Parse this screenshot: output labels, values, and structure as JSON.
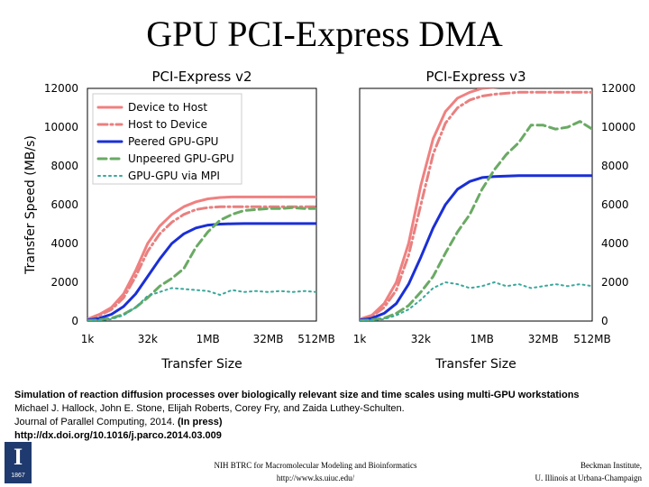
{
  "slide": {
    "title": "GPU PCI-Express DMA"
  },
  "caption": {
    "line1": "Simulation of reaction diffusion processes over biologically relevant size and time scales using multi-GPU workstations",
    "line2": "Michael J. Hallock, John E. Stone, Elijah Roberts, Corey Fry, and Zaida Luthey-Schulten.",
    "line3_journal": "Journal of Parallel Computing, 2014.",
    "line3_status": "(In press)",
    "line4": "http://dx.doi.org/10.1016/j.parco.2014.03.009"
  },
  "footer": {
    "center_line1": "NIH BTRC for Macromolecular Modeling and Bioinformatics",
    "center_line2": "http://www.ks.uiuc.edu/",
    "right_line1": "Beckman Institute,",
    "right_line2": "U. Illinois at Urbana-Champaign",
    "logo_mark": "I",
    "logo_year": "1867"
  },
  "chart_data": [
    {
      "type": "line",
      "title": "PCI-Express v2",
      "xlabel": "Transfer Size",
      "ylabel": "Transfer Speed (MB/s)",
      "x_ticks": [
        "1k",
        "32k",
        "1MB",
        "32MB",
        "512MB"
      ],
      "y_ticks": [
        0,
        2000,
        4000,
        6000,
        8000,
        10000,
        12000
      ],
      "ylim": [
        0,
        12000
      ],
      "x_scale": "log2 (transfer size)",
      "legend_position": "top-left",
      "x": [
        1,
        2,
        3,
        4,
        5,
        6,
        7,
        8,
        9,
        10,
        11,
        12,
        13,
        14,
        15,
        16,
        17,
        18,
        19,
        20
      ],
      "series": [
        {
          "name": "Device to Host",
          "color": "#f08080",
          "style": "solid",
          "values": [
            100,
            350,
            700,
            1400,
            2600,
            4000,
            4900,
            5500,
            5900,
            6150,
            6300,
            6370,
            6400,
            6400,
            6400,
            6400,
            6400,
            6400,
            6400,
            6400
          ]
        },
        {
          "name": "Host to Device",
          "color": "#e88080",
          "style": "dashdot",
          "values": [
            100,
            300,
            600,
            1200,
            2300,
            3600,
            4500,
            5100,
            5500,
            5750,
            5850,
            5900,
            5900,
            5900,
            5900,
            5900,
            5900,
            5900,
            5900,
            5900
          ]
        },
        {
          "name": "Peered GPU-GPU",
          "color": "#1a2fd6",
          "style": "solid",
          "values": [
            50,
            150,
            350,
            750,
            1400,
            2300,
            3200,
            4000,
            4500,
            4800,
            4950,
            5000,
            5020,
            5030,
            5030,
            5030,
            5030,
            5030,
            5030,
            5030
          ]
        },
        {
          "name": "Unpeered GPU-GPU",
          "color": "#6aaa64",
          "style": "dashed",
          "values": [
            20,
            60,
            150,
            350,
            700,
            1200,
            1800,
            2200,
            2700,
            3800,
            4600,
            5200,
            5500,
            5700,
            5750,
            5800,
            5800,
            5850,
            5800,
            5800
          ]
        },
        {
          "name": "GPU-GPU via MPI",
          "color": "#3aa89a",
          "style": "dotted",
          "values": [
            10,
            40,
            100,
            300,
            700,
            1300,
            1500,
            1700,
            1650,
            1600,
            1550,
            1350,
            1600,
            1500,
            1550,
            1500,
            1550,
            1500,
            1550,
            1500
          ]
        }
      ]
    },
    {
      "type": "line",
      "title": "PCI-Express v3",
      "xlabel": "Transfer Size",
      "ylabel": "",
      "x_ticks": [
        "1k",
        "32k",
        "1MB",
        "32MB",
        "512MB"
      ],
      "y_ticks": [
        0,
        2000,
        4000,
        6000,
        8000,
        10000,
        12000
      ],
      "ylim": [
        0,
        12000
      ],
      "x_scale": "log2 (transfer size)",
      "x": [
        1,
        2,
        3,
        4,
        5,
        6,
        7,
        8,
        9,
        10,
        11,
        12,
        13,
        14,
        15,
        16,
        17,
        18,
        19,
        20
      ],
      "series": [
        {
          "name": "Device to Host",
          "color": "#f08080",
          "style": "solid",
          "values": [
            100,
            300,
            900,
            2000,
            4000,
            7000,
            9400,
            10800,
            11500,
            11800,
            12000,
            12050,
            12100,
            12100,
            12100,
            12100,
            12100,
            12100,
            12100,
            12100
          ]
        },
        {
          "name": "Host to Device",
          "color": "#e88080",
          "style": "dashdot",
          "values": [
            100,
            250,
            700,
            1600,
            3400,
            6000,
            8600,
            10200,
            11000,
            11400,
            11600,
            11700,
            11750,
            11800,
            11800,
            11800,
            11800,
            11800,
            11800,
            11800
          ]
        },
        {
          "name": "Peered GPU-GPU",
          "color": "#1a2fd6",
          "style": "solid",
          "values": [
            50,
            150,
            400,
            900,
            1900,
            3300,
            4800,
            6000,
            6800,
            7200,
            7400,
            7450,
            7480,
            7500,
            7500,
            7500,
            7500,
            7500,
            7500,
            7500
          ]
        },
        {
          "name": "Unpeered GPU-GPU",
          "color": "#6aaa64",
          "style": "dashed",
          "values": [
            20,
            60,
            150,
            400,
            800,
            1500,
            2300,
            3500,
            4600,
            5500,
            6800,
            7800,
            8600,
            9200,
            10100,
            10100,
            9900,
            10000,
            10300,
            9900
          ]
        },
        {
          "name": "GPU-GPU via MPI",
          "color": "#3aa89a",
          "style": "dotted",
          "values": [
            10,
            40,
            100,
            300,
            600,
            1100,
            1700,
            2000,
            1900,
            1700,
            1800,
            2000,
            1800,
            1900,
            1700,
            1800,
            1900,
            1800,
            1900,
            1800
          ]
        }
      ]
    }
  ]
}
